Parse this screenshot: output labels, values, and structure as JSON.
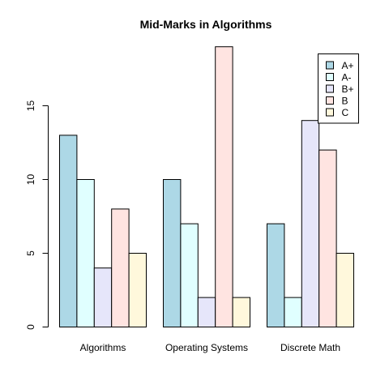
{
  "chart_data": {
    "type": "bar",
    "title": "Mid-Marks in Algorithms",
    "xlabel": "",
    "ylabel": "",
    "categories": [
      "Algorithms",
      "Operating Systems",
      "Discrete Math"
    ],
    "series": [
      {
        "name": "A+",
        "color": "#add8e6",
        "values": [
          13,
          10,
          7
        ]
      },
      {
        "name": "A-",
        "color": "#e0ffff",
        "values": [
          10,
          7,
          2
        ]
      },
      {
        "name": "B+",
        "color": "#e6e6fa",
        "values": [
          4,
          2,
          14
        ]
      },
      {
        "name": "B",
        "color": "#ffe4e1",
        "values": [
          8,
          19,
          12
        ]
      },
      {
        "name": "C",
        "color": "#fff8dc",
        "values": [
          5,
          2,
          5
        ]
      }
    ],
    "yticks": [
      0,
      5,
      10,
      15
    ],
    "ylim": [
      0,
      19
    ],
    "legend_position": "top-right",
    "grid": false
  }
}
